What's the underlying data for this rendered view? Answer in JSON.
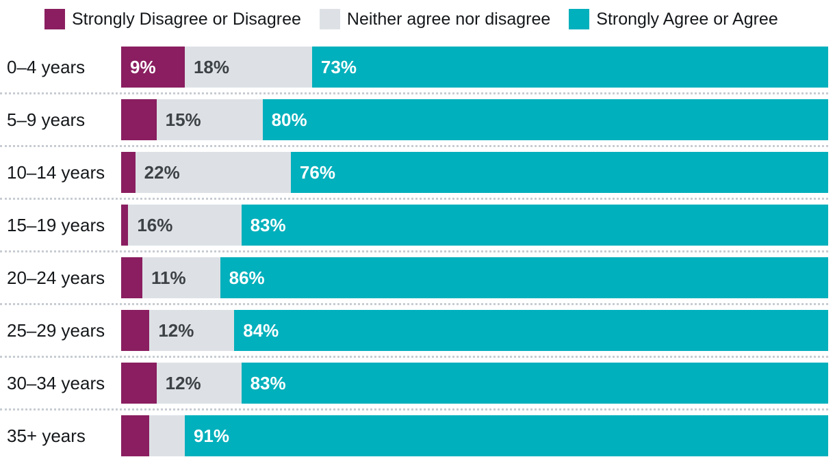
{
  "legend": [
    {
      "label": "Strongly Disagree or Disagree",
      "color": "#8a1e60"
    },
    {
      "label": "Neither agree nor disagree",
      "color": "#dde1e6"
    },
    {
      "label": "Strongly Agree or Agree",
      "color": "#00b0bc"
    }
  ],
  "colors": {
    "disagree": "#8a1e60",
    "neutral": "#dde1e6",
    "agree": "#00b0bc",
    "label_text": "#15181b",
    "pct_on_dark": "#ffffff",
    "pct_on_light": "#3d4247",
    "separator": "#c7ccd2",
    "background": "#ffffff"
  },
  "chart_data": {
    "type": "bar",
    "orientation": "horizontal",
    "stacked": true,
    "unit": "percent",
    "xlim": [
      0,
      100
    ],
    "grid": false,
    "legend_position": "top",
    "categories": [
      "0–4 years",
      "5–9 years",
      "10–14 years",
      "15–19 years",
      "20–24 years",
      "25–29 years",
      "30–34 years",
      "35+ years"
    ],
    "series": [
      {
        "key": "disagree",
        "name": "Strongly Disagree or Disagree",
        "color": "#8a1e60",
        "label_color": "#ffffff",
        "values": [
          9,
          5,
          2,
          1,
          3,
          4,
          5,
          4
        ]
      },
      {
        "key": "neutral",
        "name": "Neither agree nor disagree",
        "color": "#dde1e6",
        "label_color": "#3d4247",
        "values": [
          18,
          15,
          22,
          16,
          11,
          12,
          12,
          5
        ]
      },
      {
        "key": "agree",
        "name": "Strongly Agree or Agree",
        "color": "#00b0bc",
        "label_color": "#ffffff",
        "values": [
          73,
          80,
          76,
          83,
          86,
          84,
          83,
          91
        ]
      }
    ],
    "value_labels_shown": {
      "disagree": [
        "9%",
        "",
        "",
        "",
        "",
        "",
        "",
        ""
      ],
      "neutral": [
        "18%",
        "15%",
        "22%",
        "16%",
        "11%",
        "12%",
        "12%",
        ""
      ],
      "agree": [
        "73%",
        "80%",
        "76%",
        "83%",
        "86%",
        "84%",
        "83%",
        "91%"
      ]
    }
  }
}
